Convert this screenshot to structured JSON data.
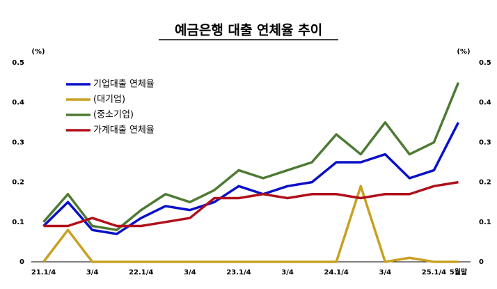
{
  "chart_data": {
    "type": "line",
    "title": "예금은행 대출 연체율 추이",
    "y_unit": "(%)",
    "y2_unit": "(%)",
    "categories": [
      "21.1/4",
      null,
      "3/4",
      null,
      "22.1/4",
      null,
      "3/4",
      null,
      "23.1/4",
      null,
      "3/4",
      null,
      "24.1/4",
      null,
      "3/4",
      null,
      "25.1/4",
      "5월말"
    ],
    "series": [
      {
        "name": "기업대출 연체율",
        "color": "#0a10c8",
        "values": [
          0.09,
          0.15,
          0.08,
          0.07,
          0.11,
          0.14,
          0.13,
          0.15,
          0.19,
          0.17,
          0.19,
          0.2,
          0.25,
          0.25,
          0.27,
          0.21,
          0.23,
          0.35
        ]
      },
      {
        "name": "(대기업)",
        "color": "#c9a020",
        "values": [
          0,
          0.08,
          0,
          0,
          0,
          0,
          0,
          0,
          0,
          0,
          0,
          0,
          0,
          0.19,
          0,
          0.01,
          0,
          0
        ]
      },
      {
        "name": "(중소기업)",
        "color": "#4e7a34",
        "values": [
          0.1,
          0.17,
          0.09,
          0.08,
          0.13,
          0.17,
          0.15,
          0.18,
          0.23,
          0.21,
          0.23,
          0.25,
          0.32,
          0.27,
          0.35,
          0.27,
          0.3,
          0.45
        ]
      },
      {
        "name": "가계대출 연체율",
        "color": "#b0101a",
        "values": [
          0.09,
          0.09,
          0.11,
          0.09,
          0.09,
          0.1,
          0.11,
          0.16,
          0.16,
          0.17,
          0.16,
          0.17,
          0.17,
          0.16,
          0.17,
          0.17,
          0.19,
          0.2
        ]
      }
    ],
    "ylim": [
      0,
      0.5
    ],
    "yticks": [
      0,
      0.1,
      0.2,
      0.3,
      0.4,
      0.5
    ],
    "y2lim": [
      0,
      0.5
    ],
    "y2ticks": [
      0,
      0.1,
      0.2,
      0.3,
      0.4,
      0.5
    ],
    "grid": false
  }
}
